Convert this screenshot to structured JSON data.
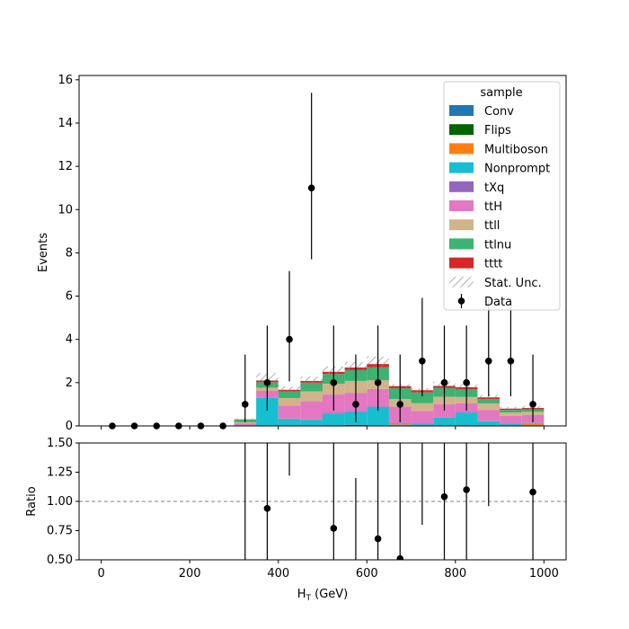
{
  "chart_data": {
    "type": "bar",
    "stacked": true,
    "xlabel_main": "H",
    "xlabel_sub": "T",
    "xlabel_unit": " (GeV)",
    "bin_edges": [
      0,
      50,
      100,
      150,
      200,
      250,
      300,
      350,
      400,
      450,
      500,
      550,
      600,
      650,
      700,
      750,
      800,
      850,
      900,
      950,
      1000
    ],
    "xlim": [
      -50,
      1050
    ],
    "xticks": [
      0,
      200,
      400,
      600,
      800,
      1000
    ],
    "top_panel": {
      "ylabel": "Events",
      "ylim": [
        0,
        16.2
      ],
      "yticks": [
        0,
        2,
        4,
        6,
        8,
        10,
        12,
        14,
        16
      ]
    },
    "bottom_panel": {
      "ylabel": "Ratio",
      "ylim": [
        0.5,
        1.5
      ],
      "yticks": [
        "0.50",
        "0.75",
        "1.00",
        "1.25",
        "1.50"
      ],
      "reference_line": 1.0
    },
    "legend": {
      "title": "sample",
      "placement": "upper-right"
    },
    "series": [
      {
        "name": "Conv",
        "color": "#1f77b4",
        "values": [
          0,
          0,
          0,
          0,
          0,
          0,
          0,
          0,
          0,
          0,
          0,
          0,
          0,
          0,
          0,
          0,
          0,
          0,
          0,
          0
        ]
      },
      {
        "name": "Flips",
        "color": "#006400",
        "values": [
          0,
          0,
          0,
          0,
          0,
          0,
          0,
          0,
          0.02,
          0.03,
          0.02,
          0.05,
          0.03,
          0.02,
          0.03,
          0.03,
          0.02,
          0.02,
          0.01,
          0.01
        ]
      },
      {
        "name": "Multiboson",
        "color": "#ff7f0e",
        "values": [
          0,
          0,
          0,
          0,
          0,
          0,
          0,
          0,
          0,
          0,
          0,
          0,
          0,
          0.05,
          0,
          0,
          0,
          0,
          0,
          0.08
        ]
      },
      {
        "name": "Nonprompt",
        "color": "#17becf",
        "values": [
          0,
          0,
          0,
          0,
          0,
          0,
          0.02,
          1.3,
          0.3,
          0.25,
          0.55,
          0.6,
          0.85,
          0.05,
          0.05,
          0.35,
          0.6,
          0.2,
          0.1,
          0.05
        ]
      },
      {
        "name": "tXq",
        "color": "#9467bd",
        "values": [
          0,
          0,
          0,
          0,
          0,
          0,
          0,
          0.02,
          0.02,
          0.02,
          0.03,
          0.03,
          0.03,
          0.02,
          0.02,
          0.02,
          0.02,
          0.02,
          0.01,
          0.01
        ]
      },
      {
        "name": "ttH",
        "color": "#e377c2",
        "values": [
          0,
          0,
          0,
          0,
          0,
          0,
          0.1,
          0.3,
          0.6,
          0.85,
          0.85,
          0.85,
          0.8,
          0.75,
          0.6,
          0.6,
          0.4,
          0.5,
          0.35,
          0.35
        ]
      },
      {
        "name": "ttll",
        "color": "#d2b48c",
        "values": [
          0,
          0,
          0,
          0,
          0,
          0,
          0.05,
          0.15,
          0.35,
          0.45,
          0.5,
          0.55,
          0.4,
          0.35,
          0.35,
          0.35,
          0.3,
          0.3,
          0.15,
          0.15
        ]
      },
      {
        "name": "ttlnu",
        "color": "#3cb371",
        "values": [
          0,
          0,
          0,
          0,
          0,
          0,
          0.12,
          0.25,
          0.3,
          0.4,
          0.45,
          0.5,
          0.6,
          0.5,
          0.5,
          0.4,
          0.35,
          0.2,
          0.12,
          0.12
        ]
      },
      {
        "name": "tttt",
        "color": "#d62728",
        "values": [
          0,
          0,
          0,
          0,
          0,
          0,
          0.01,
          0.08,
          0.08,
          0.08,
          0.1,
          0.12,
          0.15,
          0.1,
          0.1,
          0.1,
          0.1,
          0.08,
          0.06,
          0.06
        ]
      }
    ],
    "stat_unc": {
      "name": "Stat. Unc.",
      "values": [
        0,
        0,
        0,
        0,
        0,
        0,
        0.05,
        0.35,
        0.15,
        0.2,
        0.25,
        0.25,
        0.35,
        0.1,
        0.1,
        0.2,
        0.15,
        0.12,
        0.08,
        0.1
      ]
    },
    "data": {
      "name": "Data",
      "x": [
        25,
        75,
        125,
        175,
        225,
        275,
        325,
        375,
        425,
        475,
        525,
        575,
        625,
        675,
        725,
        775,
        825,
        875,
        925,
        975
      ],
      "y": [
        0,
        0,
        0,
        0,
        0,
        0,
        1,
        2,
        4,
        11,
        2,
        1,
        2,
        1,
        3,
        2,
        2,
        3,
        3,
        1
      ],
      "err_low": [
        0,
        0,
        0,
        0,
        0,
        0,
        0.83,
        1.29,
        1.94,
        3.3,
        1.29,
        0.83,
        1.29,
        0.83,
        1.63,
        1.29,
        1.29,
        1.63,
        1.63,
        0.83
      ],
      "err_high": [
        0,
        0,
        0,
        0,
        0,
        0,
        2.3,
        2.64,
        3.16,
        4.4,
        2.64,
        2.3,
        2.64,
        2.3,
        2.92,
        2.64,
        2.64,
        2.92,
        2.92,
        2.3
      ]
    },
    "ratio": {
      "x": [
        325,
        375,
        425,
        475,
        525,
        575,
        625,
        675,
        725,
        775,
        825,
        875,
        925,
        975
      ],
      "y": [
        3.1,
        0.94,
        2.2,
        4.8,
        0.77,
        0.37,
        0.68,
        0.51,
        1.75,
        1.04,
        1.1,
        2.1,
        3.7,
        1.08
      ],
      "err_low": [
        2.6,
        0.6,
        0.98,
        1.4,
        0.5,
        0.3,
        0.45,
        0.43,
        0.95,
        0.67,
        0.7,
        1.14,
        2.0,
        0.9
      ],
      "err_high": [
        7.1,
        1.24,
        1.7,
        1.9,
        0.97,
        0.83,
        0.9,
        1.2,
        1.7,
        1.37,
        1.44,
        2.0,
        3.6,
        2.5
      ]
    }
  }
}
